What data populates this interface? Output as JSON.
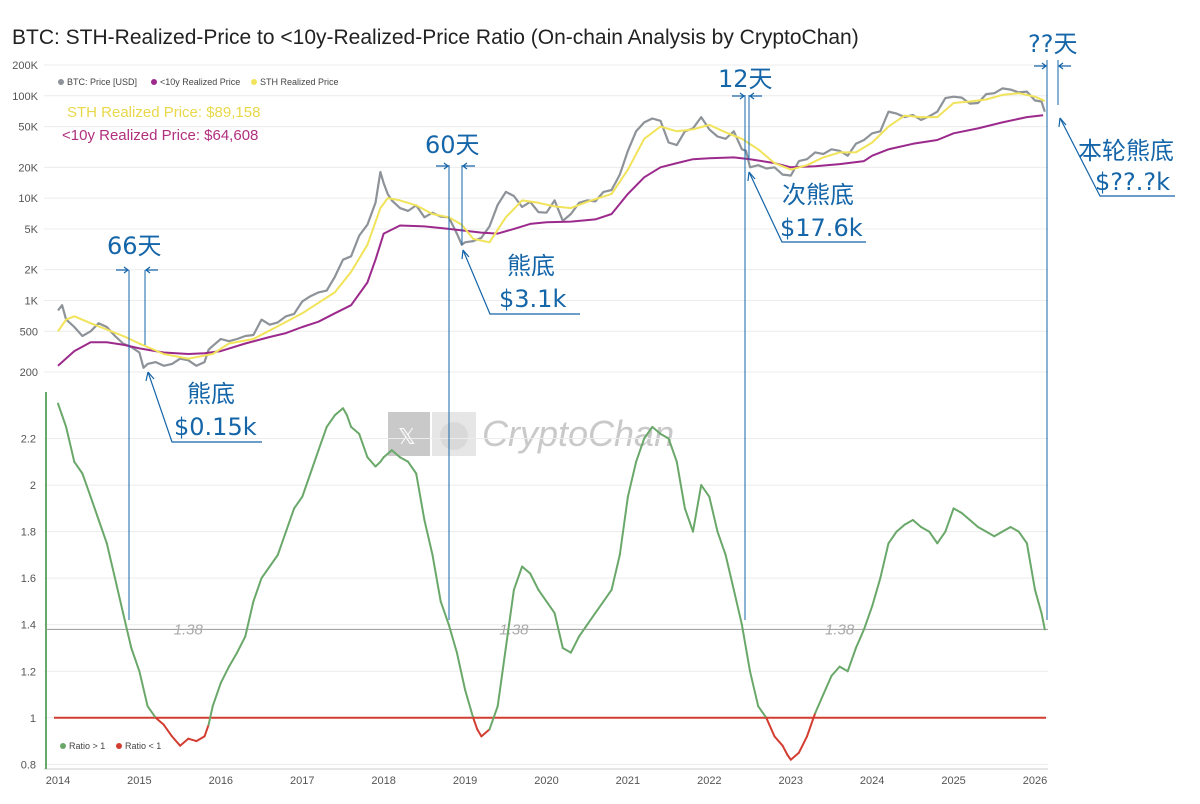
{
  "title": "BTC: STH-Realized-Price to <10y-Realized-Price Ratio (On-chain Analysis by CryptoChan)",
  "watermark": "CryptoChan",
  "info": {
    "sth_price": "STH Realized Price: $89,158",
    "ry_price": "<10y Realized Price: $64,608"
  },
  "legend_top": [
    "BTC: Price [USD]",
    "<10y Realized Price",
    "STH Realized Price"
  ],
  "legend_bottom": [
    "Ratio > 1",
    "Ratio < 1"
  ],
  "colors": {
    "price": "#8d9399",
    "ry": "#9c2a8c",
    "sth": "#f1e35a",
    "ratio_up": "#6aa86a",
    "ratio_down": "#d33d31",
    "annotation": "#1565a9",
    "ref": "#999999"
  },
  "annotations": {
    "d66": "66天",
    "d60": "60天",
    "d12": "12天",
    "dqq": "??天",
    "bottom1_label": "熊底",
    "bottom1_price": "$0.15k",
    "bottom2_label": "熊底",
    "bottom2_price": "$3.1k",
    "bottom3_label": "次熊底",
    "bottom3_price": "$17.6k",
    "bottom4_label": "本轮熊底",
    "bottom4_price": "$??.?k"
  },
  "chart_data": [
    {
      "type": "line",
      "scale": "log",
      "y_ticks": [
        "200K",
        "100K",
        "50K",
        "20K",
        "10K",
        "5K",
        "2K",
        "1K",
        "500",
        "200"
      ],
      "x_ticks": [
        "2014",
        "2015",
        "2016",
        "2017",
        "2018",
        "2019",
        "2020",
        "2021",
        "2022",
        "2023",
        "2024",
        "2025",
        "2026"
      ],
      "ylim": [
        200,
        200000
      ],
      "xlim": [
        2013.95,
        2026.15
      ],
      "series": [
        {
          "name": "BTC: Price [USD]",
          "x": [
            2014.0,
            2014.05,
            2014.1,
            2014.15,
            2014.2,
            2014.3,
            2014.4,
            2014.5,
            2014.6,
            2014.7,
            2014.8,
            2014.9,
            2015.0,
            2015.05,
            2015.1,
            2015.2,
            2015.3,
            2015.4,
            2015.5,
            2015.6,
            2015.7,
            2015.8,
            2015.85,
            2015.9,
            2016.0,
            2016.1,
            2016.2,
            2016.3,
            2016.4,
            2016.5,
            2016.6,
            2016.7,
            2016.8,
            2016.9,
            2017.0,
            2017.1,
            2017.2,
            2017.3,
            2017.4,
            2017.5,
            2017.6,
            2017.7,
            2017.8,
            2017.9,
            2017.96,
            2018.0,
            2018.05,
            2018.1,
            2018.2,
            2018.3,
            2018.4,
            2018.5,
            2018.6,
            2018.7,
            2018.8,
            2018.9,
            2018.96,
            2019.0,
            2019.1,
            2019.2,
            2019.3,
            2019.4,
            2019.5,
            2019.6,
            2019.7,
            2019.8,
            2019.9,
            2020.0,
            2020.1,
            2020.2,
            2020.3,
            2020.4,
            2020.5,
            2020.6,
            2020.7,
            2020.8,
            2020.9,
            2021.0,
            2021.1,
            2021.2,
            2021.3,
            2021.4,
            2021.5,
            2021.6,
            2021.7,
            2021.8,
            2021.9,
            2022.0,
            2022.1,
            2022.2,
            2022.3,
            2022.4,
            2022.45,
            2022.5,
            2022.6,
            2022.7,
            2022.8,
            2022.9,
            2022.96,
            2023.0,
            2023.1,
            2023.2,
            2023.3,
            2023.4,
            2023.5,
            2023.6,
            2023.7,
            2023.8,
            2023.9,
            2024.0,
            2024.1,
            2024.2,
            2024.3,
            2024.4,
            2024.5,
            2024.6,
            2024.7,
            2024.8,
            2024.9,
            2025.0,
            2025.1,
            2025.2,
            2025.3,
            2025.4,
            2025.5,
            2025.6,
            2025.7,
            2025.8,
            2025.9,
            2026.0,
            2026.08,
            2026.12
          ],
          "values": [
            800,
            900,
            650,
            600,
            550,
            450,
            500,
            600,
            550,
            450,
            380,
            350,
            310,
            220,
            240,
            250,
            230,
            240,
            270,
            260,
            230,
            250,
            330,
            360,
            420,
            400,
            420,
            450,
            460,
            650,
            580,
            610,
            700,
            740,
            980,
            1100,
            1200,
            1250,
            1700,
            2500,
            2700,
            4300,
            5500,
            9000,
            18000,
            14000,
            11000,
            9500,
            8000,
            7500,
            8500,
            6500,
            7200,
            6600,
            6500,
            4500,
            3500,
            3700,
            3800,
            4100,
            5300,
            8600,
            11500,
            10500,
            8200,
            9200,
            7300,
            7200,
            9500,
            6000,
            7000,
            9000,
            9500,
            9300,
            11500,
            12000,
            17000,
            29000,
            45000,
            55000,
            60000,
            57000,
            35000,
            33000,
            45000,
            48000,
            62000,
            47000,
            40000,
            38000,
            45000,
            30000,
            29000,
            20000,
            21000,
            19500,
            20000,
            17000,
            16800,
            16600,
            23000,
            24000,
            28000,
            27000,
            30000,
            29000,
            26000,
            34000,
            37000,
            43000,
            45000,
            70000,
            67000,
            62000,
            65000,
            58000,
            63000,
            70000,
            95000,
            98000,
            96000,
            84000,
            85000,
            104000,
            106000,
            118000,
            115000,
            108000,
            110000,
            90000,
            88000,
            70000
          ]
        },
        {
          "name": "<10y Realized Price",
          "x": [
            2014.0,
            2014.2,
            2014.4,
            2014.6,
            2014.8,
            2015.0,
            2015.3,
            2015.6,
            2015.8,
            2016.0,
            2016.3,
            2016.6,
            2016.8,
            2017.0,
            2017.2,
            2017.4,
            2017.6,
            2017.8,
            2017.9,
            2018.0,
            2018.2,
            2018.5,
            2018.8,
            2019.0,
            2019.2,
            2019.4,
            2019.6,
            2019.8,
            2020.0,
            2020.3,
            2020.6,
            2020.8,
            2021.0,
            2021.2,
            2021.4,
            2021.6,
            2021.8,
            2022.0,
            2022.3,
            2022.5,
            2022.8,
            2023.0,
            2023.3,
            2023.6,
            2023.9,
            2024.0,
            2024.2,
            2024.5,
            2024.8,
            2025.0,
            2025.3,
            2025.6,
            2025.9,
            2026.1
          ],
          "values": [
            230,
            320,
            390,
            390,
            370,
            340,
            310,
            300,
            305,
            320,
            380,
            440,
            480,
            550,
            620,
            750,
            900,
            1500,
            2500,
            4500,
            5400,
            5300,
            5000,
            4800,
            4600,
            4500,
            5000,
            5600,
            5800,
            5900,
            6200,
            7000,
            11000,
            16000,
            20000,
            22000,
            24000,
            24500,
            25000,
            24000,
            22000,
            20000,
            20500,
            21500,
            23000,
            26000,
            30000,
            34000,
            37000,
            43000,
            48000,
            55000,
            62000,
            64608
          ]
        },
        {
          "name": "STH Realized Price",
          "x": [
            2014.0,
            2014.1,
            2014.2,
            2014.4,
            2014.6,
            2014.8,
            2015.0,
            2015.3,
            2015.6,
            2015.9,
            2016.1,
            2016.4,
            2016.7,
            2017.0,
            2017.2,
            2017.4,
            2017.6,
            2017.8,
            2017.96,
            2018.05,
            2018.2,
            2018.4,
            2018.6,
            2018.8,
            2018.96,
            2019.1,
            2019.3,
            2019.5,
            2019.7,
            2019.9,
            2020.1,
            2020.3,
            2020.5,
            2020.8,
            2021.0,
            2021.2,
            2021.4,
            2021.6,
            2021.8,
            2022.0,
            2022.2,
            2022.4,
            2022.6,
            2022.8,
            2023.0,
            2023.2,
            2023.4,
            2023.6,
            2023.8,
            2024.0,
            2024.2,
            2024.4,
            2024.6,
            2024.8,
            2025.0,
            2025.2,
            2025.4,
            2025.6,
            2025.8,
            2026.0,
            2026.12
          ],
          "values": [
            500,
            650,
            700,
            600,
            520,
            450,
            380,
            300,
            270,
            300,
            380,
            420,
            560,
            750,
            950,
            1200,
            1900,
            3500,
            8000,
            10000,
            9500,
            8500,
            7000,
            6500,
            5500,
            4000,
            3700,
            6500,
            9500,
            9000,
            8300,
            8000,
            9200,
            11000,
            19000,
            38000,
            50000,
            45000,
            47000,
            52000,
            44000,
            38000,
            30000,
            22000,
            19000,
            21000,
            25000,
            28000,
            28000,
            35000,
            50000,
            64000,
            62000,
            62000,
            85000,
            88000,
            92000,
            102000,
            106000,
            98000,
            89158
          ]
        }
      ]
    },
    {
      "type": "line",
      "y_ticks": [
        "2.2",
        "2",
        "1.8",
        "1.6",
        "1.4",
        "1.2",
        "1",
        "0.8"
      ],
      "ylim": [
        0.78,
        2.4
      ],
      "xlim": [
        2013.95,
        2026.15
      ],
      "reference_lines": [
        {
          "value": 1.38,
          "label": "1.38"
        },
        {
          "value": 1.0,
          "label": ""
        }
      ],
      "series": [
        {
          "name": "Ratio",
          "x": [
            2014.0,
            2014.05,
            2014.1,
            2014.2,
            2014.3,
            2014.4,
            2014.5,
            2014.6,
            2014.7,
            2014.8,
            2014.9,
            2015.0,
            2015.1,
            2015.2,
            2015.3,
            2015.4,
            2015.5,
            2015.6,
            2015.7,
            2015.8,
            2015.85,
            2015.9,
            2016.0,
            2016.1,
            2016.2,
            2016.3,
            2016.4,
            2016.5,
            2016.6,
            2016.7,
            2016.8,
            2016.9,
            2017.0,
            2017.1,
            2017.2,
            2017.3,
            2017.4,
            2017.5,
            2017.55,
            2017.6,
            2017.7,
            2017.8,
            2017.9,
            2017.96,
            2018.0,
            2018.1,
            2018.2,
            2018.3,
            2018.4,
            2018.5,
            2018.6,
            2018.7,
            2018.8,
            2018.9,
            2019.0,
            2019.1,
            2019.15,
            2019.2,
            2019.3,
            2019.4,
            2019.5,
            2019.6,
            2019.7,
            2019.8,
            2019.9,
            2020.0,
            2020.1,
            2020.2,
            2020.3,
            2020.4,
            2020.5,
            2020.6,
            2020.7,
            2020.8,
            2020.9,
            2021.0,
            2021.1,
            2021.2,
            2021.3,
            2021.4,
            2021.5,
            2021.6,
            2021.7,
            2021.8,
            2021.9,
            2022.0,
            2022.1,
            2022.2,
            2022.3,
            2022.4,
            2022.5,
            2022.6,
            2022.7,
            2022.8,
            2022.9,
            2022.96,
            2023.0,
            2023.1,
            2023.2,
            2023.3,
            2023.4,
            2023.5,
            2023.6,
            2023.7,
            2023.8,
            2023.9,
            2024.0,
            2024.1,
            2024.2,
            2024.3,
            2024.4,
            2024.5,
            2024.6,
            2024.7,
            2024.8,
            2024.9,
            2025.0,
            2025.1,
            2025.2,
            2025.3,
            2025.4,
            2025.5,
            2025.6,
            2025.7,
            2025.8,
            2025.9,
            2026.0,
            2026.08,
            2026.12
          ],
          "values": [
            2.35,
            2.3,
            2.25,
            2.1,
            2.05,
            1.95,
            1.85,
            1.75,
            1.6,
            1.45,
            1.3,
            1.2,
            1.05,
            1.0,
            0.97,
            0.92,
            0.88,
            0.91,
            0.9,
            0.92,
            0.97,
            1.05,
            1.15,
            1.22,
            1.28,
            1.35,
            1.5,
            1.6,
            1.65,
            1.7,
            1.8,
            1.9,
            1.95,
            2.05,
            2.15,
            2.25,
            2.3,
            2.33,
            2.3,
            2.25,
            2.22,
            2.12,
            2.08,
            2.1,
            2.12,
            2.15,
            2.12,
            2.1,
            2.05,
            1.85,
            1.7,
            1.5,
            1.4,
            1.28,
            1.12,
            1.0,
            0.95,
            0.92,
            0.95,
            1.05,
            1.3,
            1.55,
            1.65,
            1.62,
            1.55,
            1.5,
            1.45,
            1.3,
            1.28,
            1.35,
            1.4,
            1.45,
            1.5,
            1.55,
            1.7,
            1.95,
            2.1,
            2.2,
            2.25,
            2.22,
            2.2,
            2.1,
            1.9,
            1.8,
            2.0,
            1.95,
            1.8,
            1.7,
            1.55,
            1.4,
            1.2,
            1.05,
            1.0,
            0.92,
            0.88,
            0.84,
            0.82,
            0.85,
            0.92,
            1.02,
            1.1,
            1.18,
            1.22,
            1.2,
            1.3,
            1.38,
            1.48,
            1.6,
            1.75,
            1.8,
            1.83,
            1.85,
            1.82,
            1.8,
            1.75,
            1.8,
            1.9,
            1.88,
            1.85,
            1.82,
            1.8,
            1.78,
            1.8,
            1.82,
            1.8,
            1.75,
            1.55,
            1.45,
            1.38
          ]
        }
      ]
    }
  ]
}
